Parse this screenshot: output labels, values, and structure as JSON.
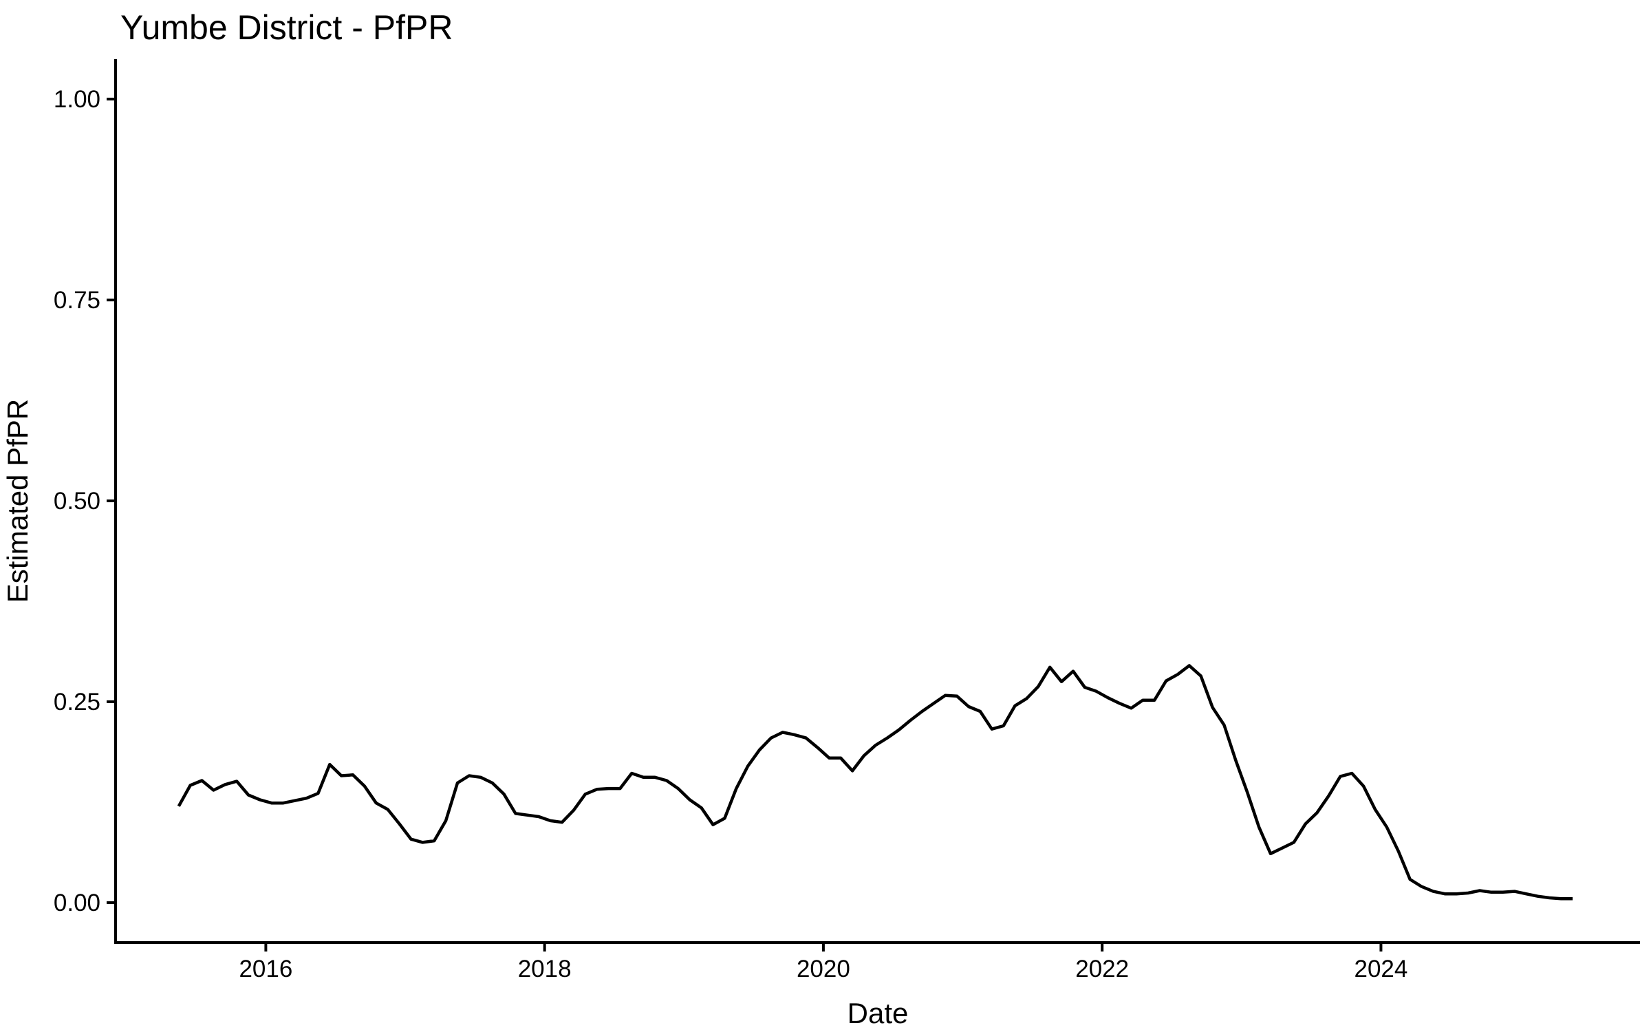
{
  "chart_data": {
    "type": "line",
    "title": "Yumbe District - PfPR",
    "xlabel": "Date",
    "ylabel": "Estimated PfPR",
    "grid": false,
    "legend": "none",
    "line_color": "#000000",
    "background_color": "#ffffff",
    "ylim": [
      0,
      1
    ],
    "y_ticks": [
      {
        "label": "0.00",
        "value": 0.0
      },
      {
        "label": "0.25",
        "value": 0.25
      },
      {
        "label": "0.50",
        "value": 0.5
      },
      {
        "label": "0.75",
        "value": 0.75
      },
      {
        "label": "1.00",
        "value": 1.0
      }
    ],
    "x_ticks": [
      {
        "label": "2016",
        "year": 2016
      },
      {
        "label": "2018",
        "year": 2018
      },
      {
        "label": "2020",
        "year": 2020
      },
      {
        "label": "2022",
        "year": 2022
      },
      {
        "label": "2024",
        "year": 2024
      }
    ],
    "series": [
      {
        "name": "Estimated PfPR",
        "dates": [
          "2015-05",
          "2015-06",
          "2015-07",
          "2015-08",
          "2015-09",
          "2015-10",
          "2015-11",
          "2015-12",
          "2016-01",
          "2016-02",
          "2016-03",
          "2016-04",
          "2016-05",
          "2016-06",
          "2016-07",
          "2016-08",
          "2016-09",
          "2016-10",
          "2016-11",
          "2016-12",
          "2017-01",
          "2017-02",
          "2017-03",
          "2017-04",
          "2017-05",
          "2017-06",
          "2017-07",
          "2017-08",
          "2017-09",
          "2017-10",
          "2017-11",
          "2017-12",
          "2018-01",
          "2018-02",
          "2018-03",
          "2018-04",
          "2018-05",
          "2018-06",
          "2018-07",
          "2018-08",
          "2018-09",
          "2018-10",
          "2018-11",
          "2018-12",
          "2019-01",
          "2019-02",
          "2019-03",
          "2019-04",
          "2019-05",
          "2019-06",
          "2019-07",
          "2019-08",
          "2019-09",
          "2019-10",
          "2019-11",
          "2019-12",
          "2020-01",
          "2020-02",
          "2020-03",
          "2020-04",
          "2020-05",
          "2020-06",
          "2020-07",
          "2020-08",
          "2020-09",
          "2020-10",
          "2020-11",
          "2020-12",
          "2021-01",
          "2021-02",
          "2021-03",
          "2021-04",
          "2021-05",
          "2021-06",
          "2021-07",
          "2021-08",
          "2021-09",
          "2021-10",
          "2021-11",
          "2021-12",
          "2022-01",
          "2022-02",
          "2022-03",
          "2022-04",
          "2022-05",
          "2022-06",
          "2022-07",
          "2022-08",
          "2022-09",
          "2022-10",
          "2022-11",
          "2022-12",
          "2023-01",
          "2023-02",
          "2023-03",
          "2023-04",
          "2023-05",
          "2023-06",
          "2023-07",
          "2023-08",
          "2023-09",
          "2023-10",
          "2023-11",
          "2023-12",
          "2024-01",
          "2024-02",
          "2024-03",
          "2024-04",
          "2024-05",
          "2024-06",
          "2024-07",
          "2024-08",
          "2024-09",
          "2024-10",
          "2024-11",
          "2024-12",
          "2025-01",
          "2025-02",
          "2025-03",
          "2025-04",
          "2025-05"
        ],
        "values": [
          0.12,
          0.146,
          0.152,
          0.14,
          0.147,
          0.151,
          0.134,
          0.128,
          0.124,
          0.124,
          0.127,
          0.13,
          0.136,
          0.172,
          0.158,
          0.159,
          0.145,
          0.124,
          0.116,
          0.098,
          0.079,
          0.075,
          0.077,
          0.102,
          0.149,
          0.158,
          0.156,
          0.149,
          0.135,
          0.111,
          0.109,
          0.107,
          0.102,
          0.1,
          0.115,
          0.135,
          0.141,
          0.142,
          0.142,
          0.161,
          0.156,
          0.156,
          0.152,
          0.142,
          0.128,
          0.118,
          0.097,
          0.105,
          0.142,
          0.17,
          0.19,
          0.205,
          0.212,
          0.209,
          0.205,
          0.193,
          0.18,
          0.18,
          0.164,
          0.183,
          0.196,
          0.205,
          0.215,
          0.227,
          0.238,
          0.248,
          0.258,
          0.257,
          0.244,
          0.238,
          0.216,
          0.22,
          0.245,
          0.254,
          0.269,
          0.293,
          0.275,
          0.288,
          0.268,
          0.263,
          0.255,
          0.248,
          0.242,
          0.252,
          0.252,
          0.276,
          0.284,
          0.295,
          0.282,
          0.243,
          0.221,
          0.177,
          0.137,
          0.094,
          0.061,
          0.068,
          0.075,
          0.098,
          0.112,
          0.133,
          0.157,
          0.161,
          0.145,
          0.116,
          0.094,
          0.064,
          0.029,
          0.02,
          0.014,
          0.011,
          0.011,
          0.012,
          0.015,
          0.013,
          0.013,
          0.014,
          0.011,
          0.008,
          0.006,
          0.005,
          0.005
        ]
      }
    ]
  }
}
